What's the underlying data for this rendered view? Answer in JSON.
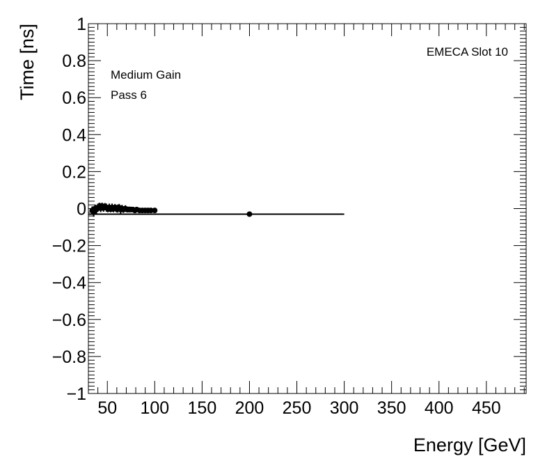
{
  "chart_data": {
    "type": "scatter",
    "title": "",
    "xlabel": "Energy [GeV]",
    "ylabel": "Time [ns]",
    "xlim": [
      30,
      492
    ],
    "ylim": [
      -1,
      1
    ],
    "x_ticks": [
      50,
      100,
      150,
      200,
      250,
      300,
      350,
      400,
      450
    ],
    "x_tick_labels": [
      "50",
      "100",
      "150",
      "200",
      "250",
      "300",
      "350",
      "400",
      "450"
    ],
    "y_ticks": [
      -1,
      -0.8,
      -0.6,
      -0.4,
      -0.2,
      0,
      0.2,
      0.4,
      0.6,
      0.8,
      1
    ],
    "y_tick_labels": [
      "−1",
      "−0.8",
      "−0.6",
      "−0.4",
      "−0.2",
      "0",
      "0.2",
      "0.4",
      "0.6",
      "0.8",
      "1"
    ],
    "grid": false,
    "annotations": {
      "label": "EMECA Slot 10",
      "gain": "Medium Gain",
      "pass": "Pass 6"
    },
    "fit_line": {
      "x": [
        30,
        300
      ],
      "y": [
        -0.03,
        -0.03
      ]
    },
    "series": [
      {
        "points": [
          {
            "x": 34,
            "y": -0.01,
            "err": 0.022
          },
          {
            "x": 35.5,
            "y": -0.02,
            "err": 0.024
          },
          {
            "x": 37,
            "y": 0.0,
            "err": 0.022
          },
          {
            "x": 38.5,
            "y": -0.005,
            "err": 0.024
          },
          {
            "x": 40,
            "y": 0.005,
            "err": 0.022
          },
          {
            "x": 41.5,
            "y": 0.01,
            "err": 0.022
          },
          {
            "x": 43,
            "y": 0.005,
            "err": 0.024
          },
          {
            "x": 44.5,
            "y": 0.01,
            "err": 0.022
          },
          {
            "x": 46,
            "y": 0.005,
            "err": 0.022
          },
          {
            "x": 47.5,
            "y": 0.01,
            "err": 0.02
          },
          {
            "x": 49,
            "y": 0.005,
            "err": 0.022
          },
          {
            "x": 50.5,
            "y": 0.0,
            "err": 0.02
          },
          {
            "x": 52,
            "y": 0.005,
            "err": 0.022
          },
          {
            "x": 53.5,
            "y": 0.0,
            "err": 0.02
          },
          {
            "x": 55,
            "y": 0.005,
            "err": 0.022
          },
          {
            "x": 56.5,
            "y": 0.0,
            "err": 0.02
          },
          {
            "x": 58,
            "y": 0.005,
            "err": 0.02
          },
          {
            "x": 59.5,
            "y": 0.0,
            "err": 0.02
          },
          {
            "x": 61,
            "y": 0.0,
            "err": 0.022
          },
          {
            "x": 62.5,
            "y": 0.005,
            "err": 0.02
          },
          {
            "x": 64,
            "y": -0.005,
            "err": 0.022
          },
          {
            "x": 65.5,
            "y": 0.0,
            "err": 0.02
          },
          {
            "x": 67,
            "y": -0.005,
            "err": 0.018
          },
          {
            "x": 69,
            "y": 0.0,
            "err": 0.018
          },
          {
            "x": 71,
            "y": -0.005,
            "err": 0.016
          },
          {
            "x": 73,
            "y": -0.005,
            "err": 0.016
          },
          {
            "x": 75,
            "y": -0.005,
            "err": 0.015
          },
          {
            "x": 77,
            "y": -0.005,
            "err": 0.014
          },
          {
            "x": 79,
            "y": -0.01,
            "err": 0.013
          },
          {
            "x": 81,
            "y": -0.005,
            "err": 0.012
          },
          {
            "x": 84,
            "y": -0.01,
            "err": 0.011
          },
          {
            "x": 87,
            "y": -0.01,
            "err": 0.01
          },
          {
            "x": 90,
            "y": -0.01,
            "err": 0.009
          },
          {
            "x": 93,
            "y": -0.01,
            "err": 0.008
          },
          {
            "x": 96,
            "y": -0.01,
            "err": 0.007
          },
          {
            "x": 100,
            "y": -0.01,
            "err": 0.006
          },
          {
            "x": 200,
            "y": -0.03,
            "err": 0.0
          }
        ]
      }
    ]
  }
}
